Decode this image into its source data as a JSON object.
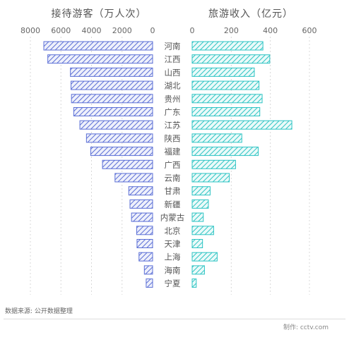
{
  "chart_data": {
    "type": "bar",
    "categories": [
      "河南",
      "江西",
      "山西",
      "湖北",
      "贵州",
      "广东",
      "江苏",
      "陕西",
      "福建",
      "广西",
      "云南",
      "甘肃",
      "新疆",
      "内蒙古",
      "北京",
      "天津",
      "上海",
      "海南",
      "宁夏"
    ],
    "series": [
      {
        "name": "接待游客（万人次）",
        "values": [
          7120,
          6860,
          5380,
          5340,
          5310,
          5160,
          4760,
          4330,
          4050,
          3280,
          2460,
          1560,
          1480,
          1380,
          1040,
          1020,
          890,
          540,
          420
        ]
      },
      {
        "name": "旅游收入（亿元）",
        "values": [
          362,
          397,
          318,
          342,
          358,
          346,
          510,
          254,
          338,
          222,
          190,
          92,
          83,
          57,
          110,
          53,
          128,
          63,
          21
        ]
      }
    ],
    "left_axis": {
      "ticks": [
        "8000",
        "6000",
        "4000",
        "2000",
        "0"
      ],
      "range": [
        0,
        8000
      ],
      "reversed": true
    },
    "right_axis": {
      "ticks": [
        "0",
        "200",
        "400",
        "600"
      ],
      "range": [
        0,
        600
      ]
    },
    "colors": {
      "left_bar": "#5b6fd6",
      "right_bar": "#2ec4c4",
      "grid": "#d8d8d8"
    },
    "grid": true
  },
  "titles": {
    "left": "接待游客（万人次）",
    "right": "旅游收入（亿元）"
  },
  "footer": {
    "source": "数据来源: 公开数据整理",
    "credit": "制作: cctv.com"
  }
}
